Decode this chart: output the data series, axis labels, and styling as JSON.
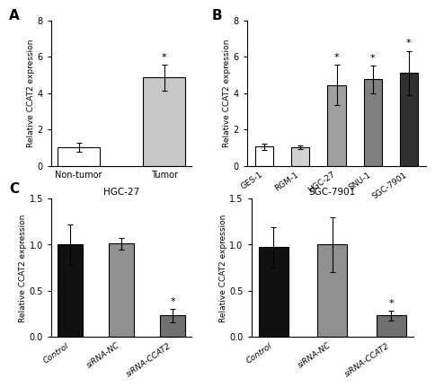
{
  "panel_A": {
    "categories": [
      "Non-tumor",
      "Tumor"
    ],
    "values": [
      1.0,
      4.85
    ],
    "errors": [
      0.25,
      0.7
    ],
    "colors": [
      "#ffffff",
      "#c8c8c8"
    ],
    "star": [
      false,
      true
    ],
    "ylim": [
      0,
      8
    ],
    "yticks": [
      0,
      2,
      4,
      6,
      8
    ],
    "ylabel": "Relative CCAT2 expression",
    "label": "A"
  },
  "panel_B": {
    "categories": [
      "GES-1",
      "RGM-1",
      "HGC-27",
      "SNU-1",
      "SGC-7901"
    ],
    "values": [
      1.05,
      1.0,
      4.45,
      4.75,
      5.1
    ],
    "errors": [
      0.18,
      0.1,
      1.1,
      0.75,
      1.2
    ],
    "colors": [
      "#ffffff",
      "#d3d3d3",
      "#a0a0a0",
      "#808080",
      "#303030"
    ],
    "star": [
      false,
      false,
      true,
      true,
      true
    ],
    "ylim": [
      0,
      8
    ],
    "yticks": [
      0,
      2,
      4,
      6,
      8
    ],
    "ylabel": "Relative CCAT2 expression",
    "label": "B"
  },
  "panel_C1": {
    "title": "HGC-27",
    "categories": [
      "Control",
      "siRNA-NC",
      "siRNA-CCAT2"
    ],
    "values": [
      1.0,
      1.01,
      0.23
    ],
    "errors": [
      0.22,
      0.06,
      0.07
    ],
    "colors": [
      "#111111",
      "#909090",
      "#707070"
    ],
    "star": [
      false,
      false,
      true
    ],
    "ylim": [
      0,
      1.5
    ],
    "yticks": [
      0.0,
      0.5,
      1.0,
      1.5
    ],
    "ylabel": "Relative CCAT2 expression",
    "label": "C"
  },
  "panel_C2": {
    "title": "SGC-7901",
    "categories": [
      "Control",
      "siRNA-NC",
      "siRNA-CCAT2"
    ],
    "values": [
      0.97,
      1.0,
      0.23
    ],
    "errors": [
      0.22,
      0.3,
      0.05
    ],
    "colors": [
      "#111111",
      "#909090",
      "#707070"
    ],
    "star": [
      false,
      false,
      true
    ],
    "ylim": [
      0,
      1.5
    ],
    "yticks": [
      0.0,
      0.5,
      1.0,
      1.5
    ],
    "ylabel": "Relative CCAT2 expression",
    "label": ""
  },
  "background_color": "#ffffff",
  "edge_color": "#000000",
  "bar_width": 0.5
}
